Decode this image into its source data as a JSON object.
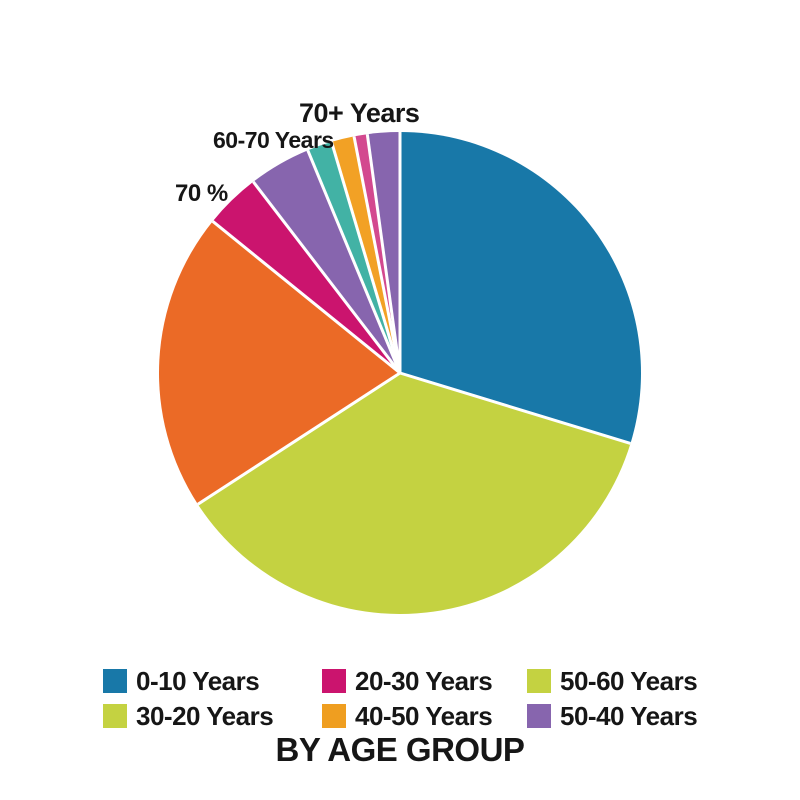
{
  "title": "BY AGE GROUP",
  "annotations": [
    {
      "id": "70plus",
      "text": "70+ Years"
    },
    {
      "id": "60-70",
      "text": "60-70 Years"
    },
    {
      "id": "70pct",
      "text": "70 %"
    }
  ],
  "legend": {
    "items": [
      {
        "label": "0-10 Years",
        "color": "#1878a8"
      },
      {
        "label": "20-30 Years",
        "color": "#cb146e"
      },
      {
        "label": "50-60 Years",
        "color": "#c4d241"
      },
      {
        "label": "30-20 Years",
        "color": "#c4d241"
      },
      {
        "label": "40-50 Years",
        "color": "#ef9e20"
      },
      {
        "label": "50-40 Years",
        "color": "#8765ae"
      }
    ]
  },
  "chart_data": {
    "type": "pie",
    "title": "BY AGE GROUP",
    "legend_position": "bottom",
    "annotations": [
      "70+ Years",
      "60-70 Years",
      "70 %"
    ],
    "slices": [
      {
        "label": "0-10 Years",
        "color": "#1878a8",
        "percent": 29.7,
        "start_deg": 0,
        "end_deg": 107
      },
      {
        "label": "50-60 Years",
        "color": "#c4d241",
        "percent": 36.1,
        "start_deg": 107,
        "end_deg": 237
      },
      {
        "label": "40-50 Years",
        "color": "#eb6a26",
        "percent": 20.0,
        "start_deg": 237,
        "end_deg": 309
      },
      {
        "label": "20-30 Years",
        "color": "#cb146e",
        "percent": 3.8,
        "start_deg": 309,
        "end_deg": 322.5
      },
      {
        "label": "50-40 Years",
        "color": "#8765ae",
        "percent": 4.2,
        "start_deg": 322.5,
        "end_deg": 337.5
      },
      {
        "label": "60-70 Years",
        "color": "#42b2a5",
        "percent": 1.6,
        "start_deg": 337.5,
        "end_deg": 343.5
      },
      {
        "label": "",
        "color": "#f2a125",
        "percent": 1.5,
        "start_deg": 343.5,
        "end_deg": 349
      },
      {
        "label": "",
        "color": "#d3498f",
        "percent": 0.9,
        "start_deg": 349,
        "end_deg": 352.2
      },
      {
        "label": "70+ Years",
        "color": "#8765ae",
        "percent": 2.2,
        "start_deg": 352.2,
        "end_deg": 360
      }
    ]
  }
}
